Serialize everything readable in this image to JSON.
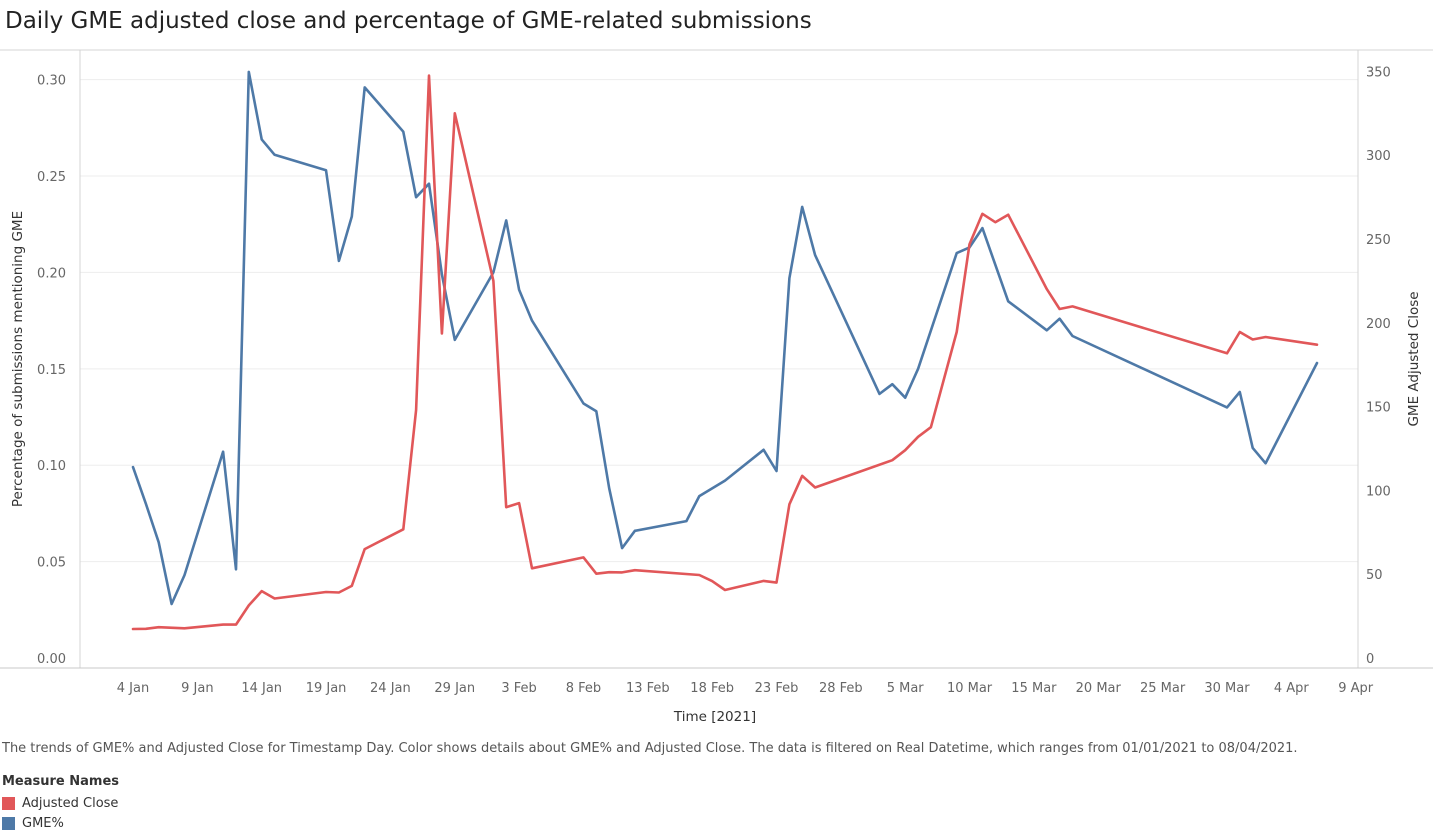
{
  "title": "Daily GME adjusted close and percentage of GME-related submissions",
  "caption": "The trends of GME% and Adjusted Close for Timestamp Day.  Color shows details about GME% and Adjusted Close. The data is filtered on Real Datetime, which ranges from 01/01/2021 to 08/04/2021.",
  "legend": {
    "title": "Measure Names",
    "items": [
      {
        "label": "Adjusted Close",
        "color": "#e15759"
      },
      {
        "label": "GME%",
        "color": "#4e79a7"
      }
    ]
  },
  "chart_data": {
    "type": "line",
    "xlabel": "Time [2021]",
    "ylabel_left": "Percentage of submissions mentioning GME",
    "ylabel_right": "GME Adjusted Close",
    "x_ticks": [
      "4 Jan",
      "9 Jan",
      "14 Jan",
      "19 Jan",
      "24 Jan",
      "29 Jan",
      "3 Feb",
      "8 Feb",
      "13 Feb",
      "18 Feb",
      "23 Feb",
      "28 Feb",
      "5 Mar",
      "10 Mar",
      "15 Mar",
      "20 Mar",
      "25 Mar",
      "30 Mar",
      "4 Apr",
      "9 Apr"
    ],
    "x_range": [
      "2021-01-02",
      "2021-04-09"
    ],
    "y_left": {
      "ticks": [
        "0.00",
        "0.05",
        "0.10",
        "0.15",
        "0.20",
        "0.25",
        "0.30"
      ],
      "range": [
        0,
        0.305
      ]
    },
    "y_right": {
      "ticks": [
        "0",
        "50",
        "100",
        "150",
        "200",
        "250",
        "300",
        "350"
      ],
      "range": [
        0,
        355
      ]
    },
    "grid": true,
    "legend_position": "bottom-left",
    "series": [
      {
        "name": "GME%",
        "axis": "left",
        "color": "#4e79a7",
        "points": [
          [
            "2021-01-04",
            0.099
          ],
          [
            "2021-01-05",
            0.08
          ],
          [
            "2021-01-06",
            0.06
          ],
          [
            "2021-01-07",
            0.028
          ],
          [
            "2021-01-08",
            0.043
          ],
          [
            "2021-01-11",
            0.107
          ],
          [
            "2021-01-12",
            0.046
          ],
          [
            "2021-01-13",
            0.304
          ],
          [
            "2021-01-14",
            0.269
          ],
          [
            "2021-01-15",
            0.261
          ],
          [
            "2021-01-19",
            0.253
          ],
          [
            "2021-01-20",
            0.206
          ],
          [
            "2021-01-21",
            0.229
          ],
          [
            "2021-01-22",
            0.296
          ],
          [
            "2021-01-25",
            0.273
          ],
          [
            "2021-01-26",
            0.239
          ],
          [
            "2021-01-27",
            0.246
          ],
          [
            "2021-01-28",
            0.199
          ],
          [
            "2021-01-29",
            0.165
          ],
          [
            "2021-02-01",
            0.2
          ],
          [
            "2021-02-02",
            0.227
          ],
          [
            "2021-02-03",
            0.191
          ],
          [
            "2021-02-04",
            0.175
          ],
          [
            "2021-02-08",
            0.132
          ],
          [
            "2021-02-09",
            0.128
          ],
          [
            "2021-02-10",
            0.088
          ],
          [
            "2021-02-11",
            0.057
          ],
          [
            "2021-02-12",
            0.066
          ],
          [
            "2021-02-16",
            0.071
          ],
          [
            "2021-02-17",
            0.084
          ],
          [
            "2021-02-19",
            0.092
          ],
          [
            "2021-02-22",
            0.108
          ],
          [
            "2021-02-23",
            0.097
          ],
          [
            "2021-02-24",
            0.197
          ],
          [
            "2021-02-25",
            0.234
          ],
          [
            "2021-02-26",
            0.209
          ],
          [
            "2021-03-03",
            0.137
          ],
          [
            "2021-03-04",
            0.142
          ],
          [
            "2021-03-05",
            0.135
          ],
          [
            "2021-03-06",
            0.15
          ],
          [
            "2021-03-09",
            0.21
          ],
          [
            "2021-03-10",
            0.213
          ],
          [
            "2021-03-11",
            0.223
          ],
          [
            "2021-03-13",
            0.185
          ],
          [
            "2021-03-16",
            0.17
          ],
          [
            "2021-03-17",
            0.176
          ],
          [
            "2021-03-18",
            0.167
          ],
          [
            "2021-03-30",
            0.13
          ],
          [
            "2021-03-31",
            0.138
          ],
          [
            "2021-04-01",
            0.109
          ],
          [
            "2021-04-02",
            0.101
          ],
          [
            "2021-04-06",
            0.153
          ]
        ]
      },
      {
        "name": "Adjusted Close",
        "axis": "right",
        "color": "#e15759",
        "points": [
          [
            "2021-01-04",
            17.3
          ],
          [
            "2021-01-05",
            17.4
          ],
          [
            "2021-01-06",
            18.4
          ],
          [
            "2021-01-08",
            17.7
          ],
          [
            "2021-01-11",
            19.9
          ],
          [
            "2021-01-12",
            19.9
          ],
          [
            "2021-01-13",
            31.4
          ],
          [
            "2021-01-14",
            39.9
          ],
          [
            "2021-01-15",
            35.5
          ],
          [
            "2021-01-19",
            39.4
          ],
          [
            "2021-01-20",
            39.1
          ],
          [
            "2021-01-21",
            43.0
          ],
          [
            "2021-01-22",
            65.0
          ],
          [
            "2021-01-25",
            76.8
          ],
          [
            "2021-01-26",
            147.98
          ],
          [
            "2021-01-27",
            347.5
          ],
          [
            "2021-01-28",
            193.6
          ],
          [
            "2021-01-29",
            325.0
          ],
          [
            "2021-02-01",
            225.0
          ],
          [
            "2021-02-02",
            90.0
          ],
          [
            "2021-02-03",
            92.4
          ],
          [
            "2021-02-04",
            53.5
          ],
          [
            "2021-02-08",
            60.0
          ],
          [
            "2021-02-09",
            50.3
          ],
          [
            "2021-02-10",
            51.2
          ],
          [
            "2021-02-11",
            51.1
          ],
          [
            "2021-02-12",
            52.4
          ],
          [
            "2021-02-17",
            49.5
          ],
          [
            "2021-02-18",
            45.9
          ],
          [
            "2021-02-19",
            40.6
          ],
          [
            "2021-02-22",
            46.0
          ],
          [
            "2021-02-23",
            44.97
          ],
          [
            "2021-02-24",
            91.71
          ],
          [
            "2021-02-25",
            108.73
          ],
          [
            "2021-02-26",
            101.74
          ],
          [
            "2021-03-04",
            118.0
          ],
          [
            "2021-03-05",
            124.0
          ],
          [
            "2021-03-06",
            132.0
          ],
          [
            "2021-03-07",
            137.7
          ],
          [
            "2021-03-09",
            194.5
          ],
          [
            "2021-03-10",
            246.9
          ],
          [
            "2021-03-11",
            265.0
          ],
          [
            "2021-03-12",
            260.0
          ],
          [
            "2021-03-13",
            264.5
          ],
          [
            "2021-03-16",
            220.1
          ],
          [
            "2021-03-17",
            208.2
          ],
          [
            "2021-03-18",
            209.8
          ],
          [
            "2021-03-30",
            181.8
          ],
          [
            "2021-03-31",
            194.5
          ],
          [
            "2021-04-01",
            190.0
          ],
          [
            "2021-04-02",
            191.5
          ],
          [
            "2021-04-06",
            186.95
          ]
        ]
      }
    ]
  }
}
